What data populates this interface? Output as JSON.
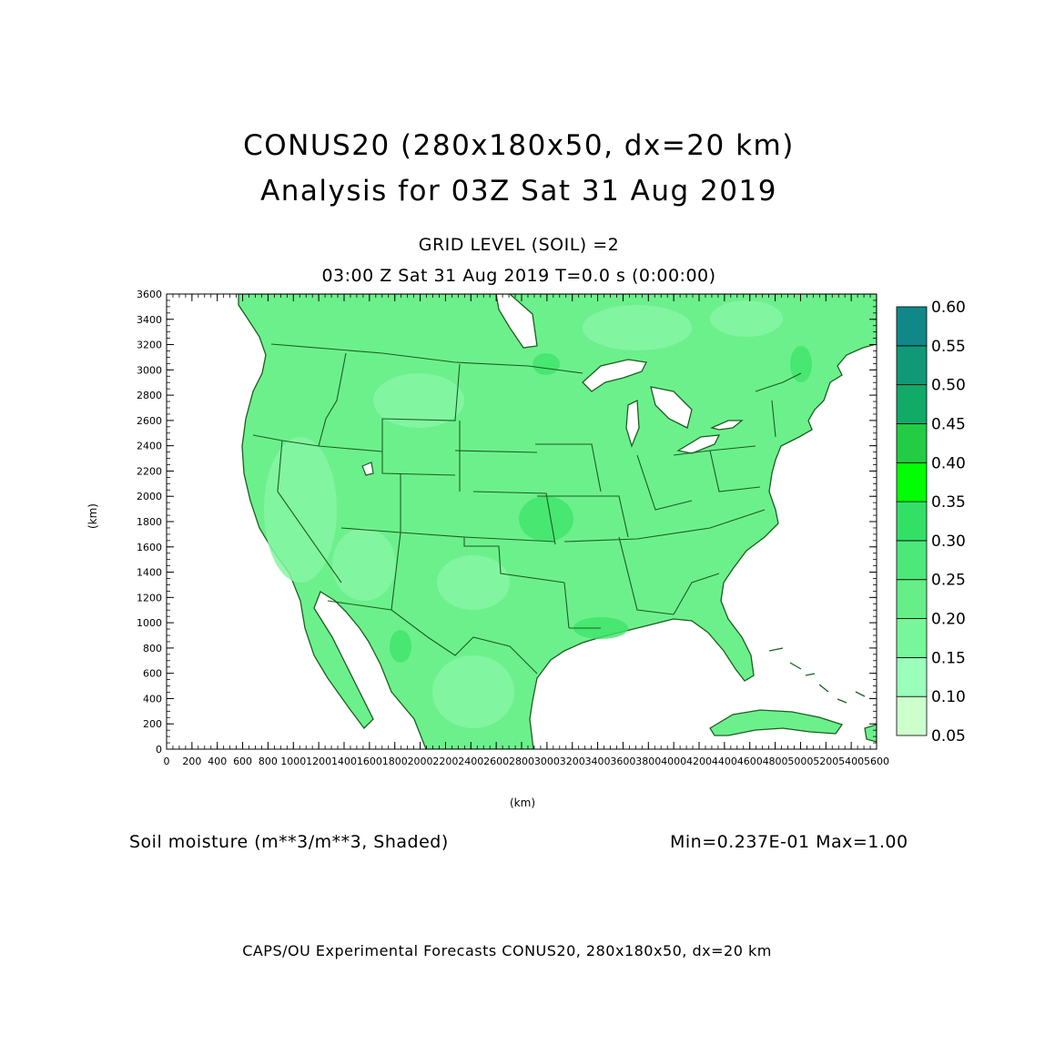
{
  "title": {
    "line1": "CONUS20 (280x180x50, dx=20 km)",
    "line2": "Analysis for 03Z Sat 31 Aug 2019"
  },
  "subtitle": {
    "level": "GRID LEVEL (SOIL) =2",
    "time": "03:00 Z Sat 31 Aug 2019    T=0.0 s (0:00:00)"
  },
  "axes": {
    "x_label": "(km)",
    "y_label": "(km)",
    "x_range": [
      0,
      5600
    ],
    "y_range": [
      0,
      3600
    ],
    "x_ticks": [
      "0",
      "200",
      "400",
      "600",
      "800",
      "1000",
      "1200",
      "1400",
      "1600",
      "1800",
      "2000",
      "2200",
      "2400",
      "2600",
      "2800",
      "3000",
      "3200",
      "3400",
      "3600",
      "3800",
      "4000",
      "4200",
      "4400",
      "4600",
      "4800",
      "5000",
      "5200",
      "5400",
      "5600"
    ],
    "y_ticks": [
      "0",
      "200",
      "400",
      "600",
      "800",
      "1000",
      "1200",
      "1400",
      "1600",
      "1800",
      "2000",
      "2200",
      "2400",
      "2600",
      "2800",
      "3000",
      "3200",
      "3400",
      "3600"
    ]
  },
  "field": {
    "label": "Soil moisture (m**3/m**3, Shaded)",
    "minmax": "Min=0.237E-01 Max=1.00"
  },
  "colorbar": {
    "levels": [
      "0.05",
      "0.10",
      "0.15",
      "0.20",
      "0.25",
      "0.30",
      "0.35",
      "0.40",
      "0.45",
      "0.50",
      "0.55",
      "0.60"
    ],
    "colors": [
      "#ccffcc",
      "#99ffbb",
      "#77f799",
      "#66ee88",
      "#4de87a",
      "#33e066",
      "#00ff00",
      "#22cc44",
      "#11aa66",
      "#119977",
      "#118888",
      "#1166ee"
    ]
  },
  "map_colors": {
    "land": "#6cf08c",
    "land_light": "#86f6a4",
    "land_wet": "#3fe56a",
    "water": "#ffffff",
    "boundary": "#1b5e20"
  },
  "footer": "CAPS/OU Experimental Forecasts  CONUS20, 280x180x50, dx=20 km"
}
